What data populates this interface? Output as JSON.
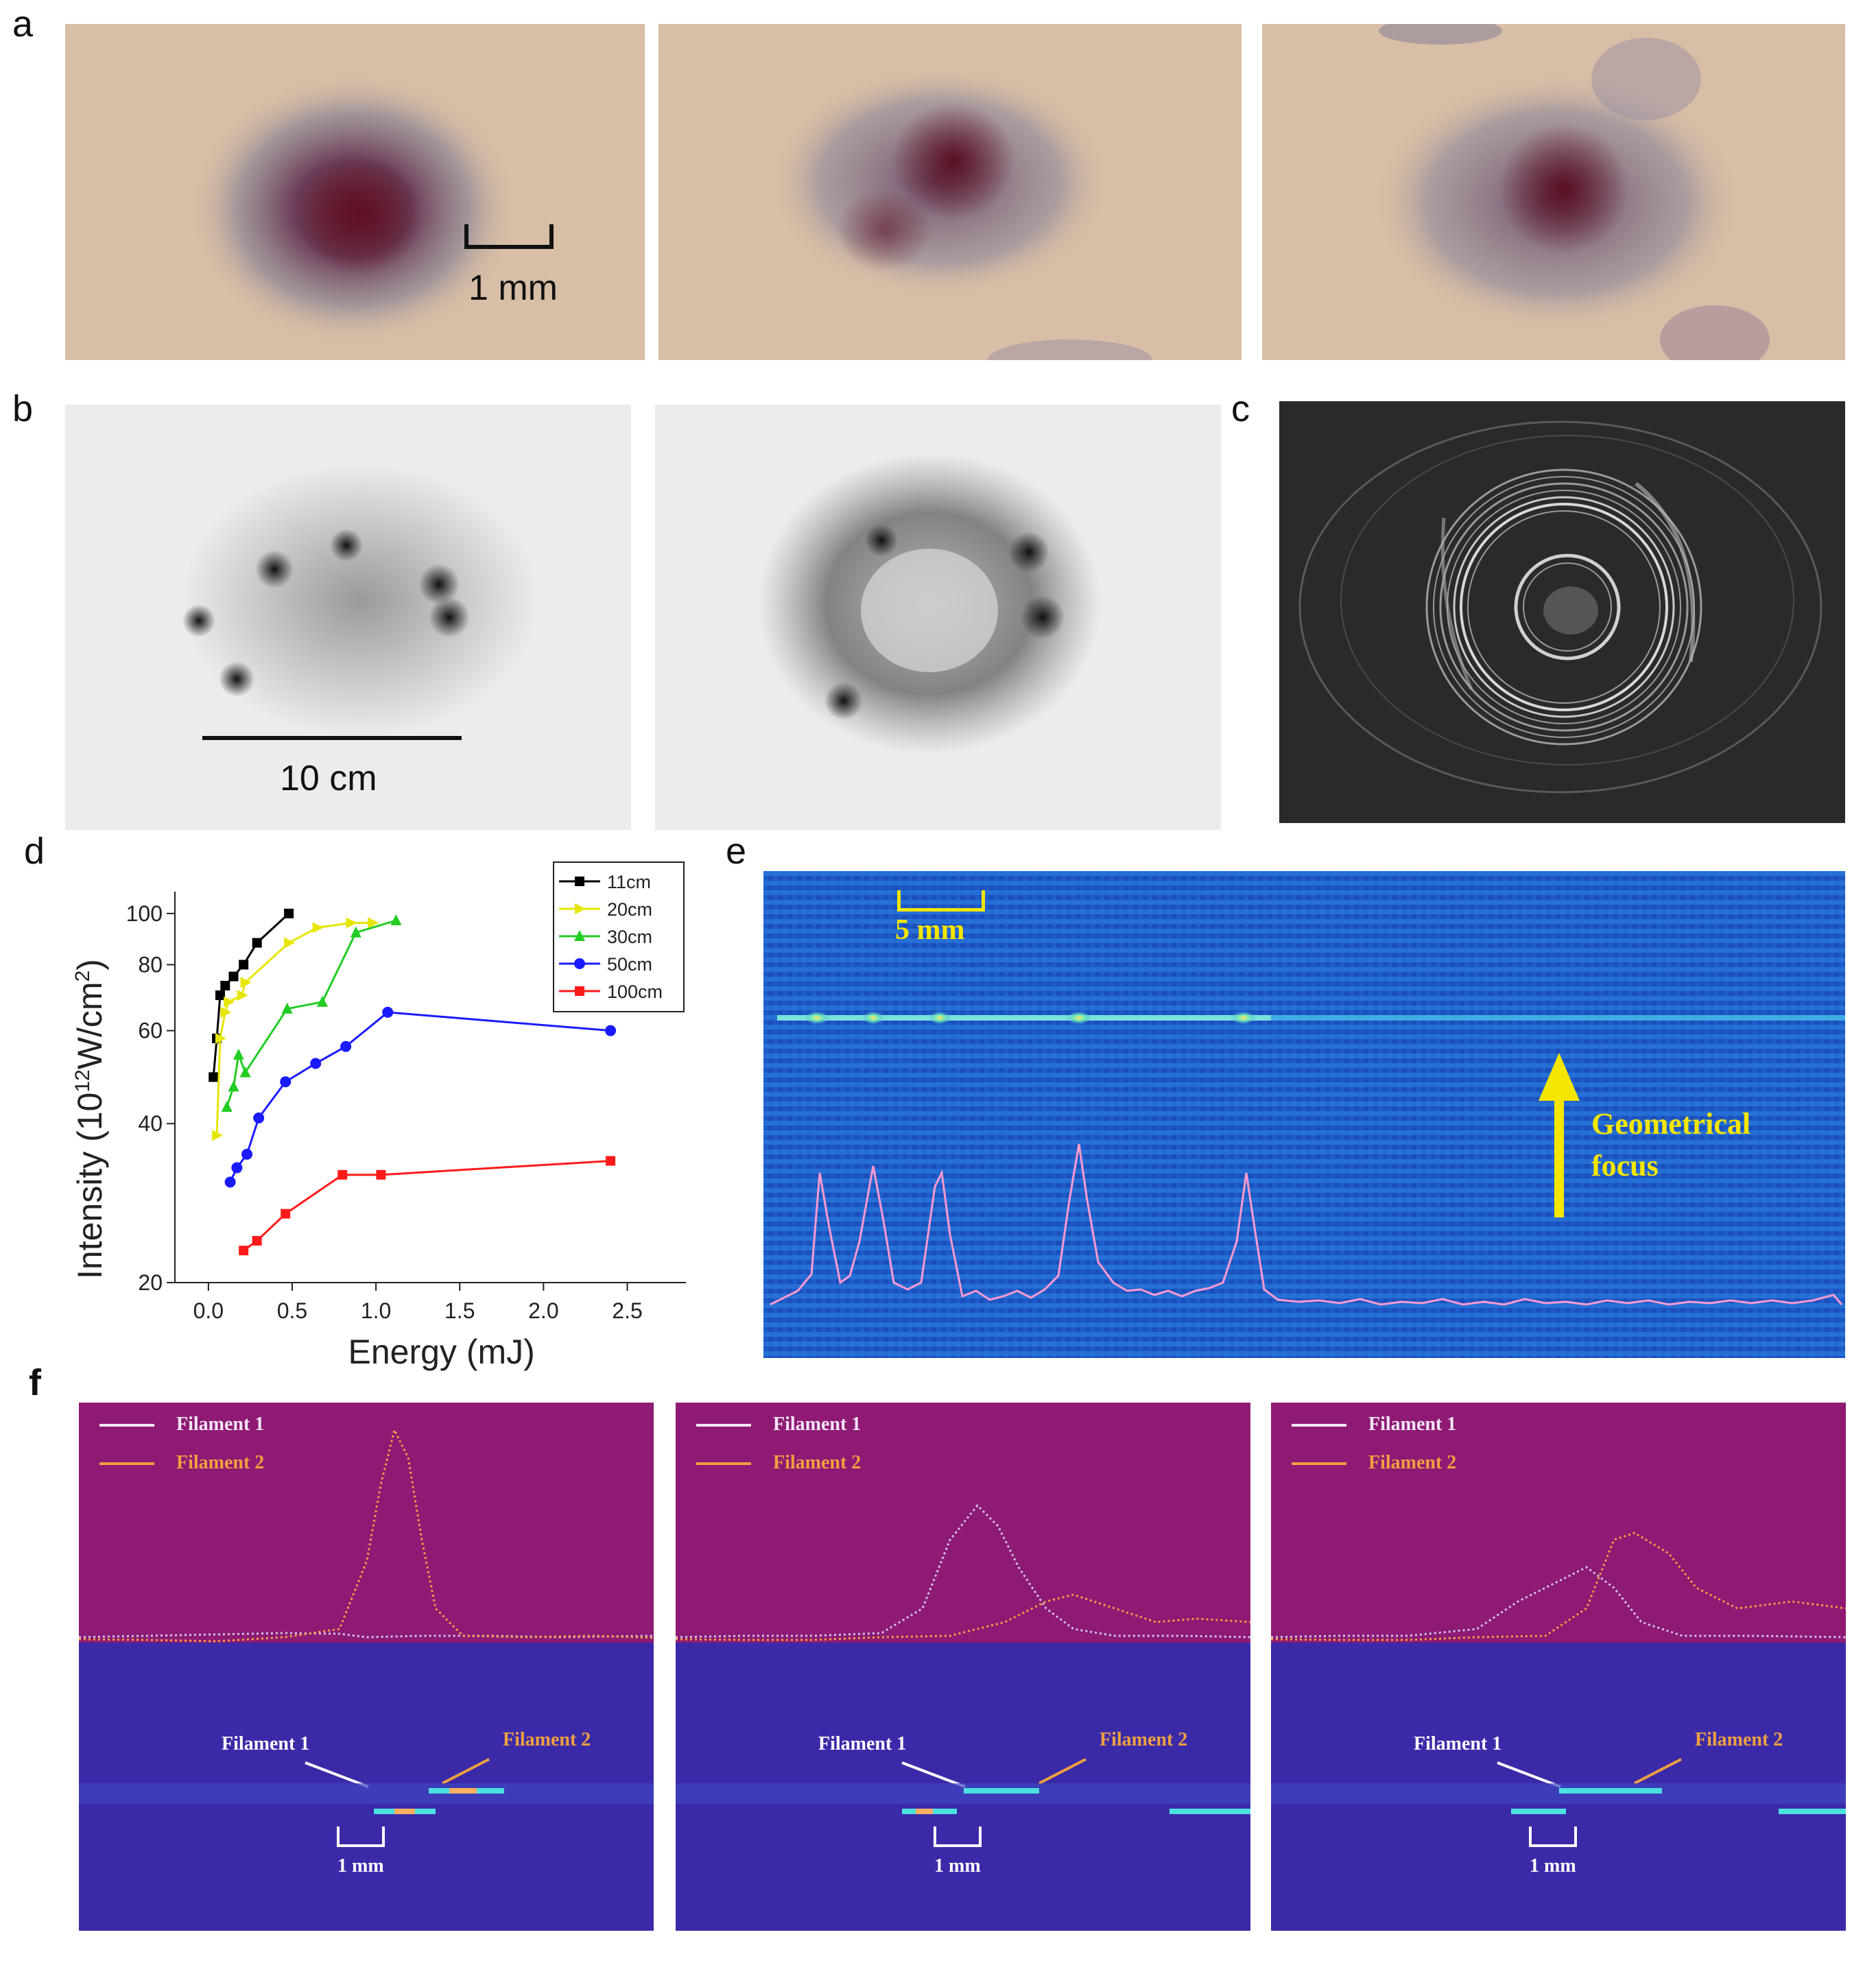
{
  "panels": {
    "a": {
      "letter": "a",
      "scale_label": "1 mm"
    },
    "b": {
      "letter": "b",
      "scale_label": "10 cm"
    },
    "c": {
      "letter": "c"
    },
    "d": {
      "letter": "d"
    },
    "e": {
      "letter": "e",
      "scale_label": "5 mm",
      "annotation_line1": "Geometrical",
      "annotation_line2": "focus"
    },
    "f": {
      "letter": "f",
      "legend_1": "Filament 1",
      "legend_2": "Filament 2",
      "label_1": "Filament 1",
      "label_2": "Filament 2",
      "scale_label": "1 mm"
    }
  },
  "colors": {
    "series_11cm": "#000000",
    "series_20cm": "#e6e600",
    "series_30cm": "#22cc22",
    "series_50cm": "#1a1aff",
    "series_100cm": "#ff1a1a",
    "filament_1": "#f3e6f7",
    "filament_2": "#f0a040",
    "annotation_yellow": "#f5e600"
  },
  "chart_data": {
    "type": "line",
    "xlabel": "Energy (mJ)",
    "ylabel": "Intensity (10^12 W/cm^2)",
    "ylabel_main": "Intensity (10",
    "ylabel_exp": "12",
    "ylabel_unit": "W/cm",
    "ylabel_unit_exp": "2",
    "ylabel_close": ")",
    "yscale": "log",
    "xlim": [
      -0.2,
      2.85
    ],
    "ylim": [
      20,
      110
    ],
    "x_ticks": [
      "0.0",
      "0.5",
      "1.0",
      "1.5",
      "2.0",
      "2.5"
    ],
    "x_tick_values": [
      0.0,
      0.5,
      1.0,
      1.5,
      2.0,
      2.5
    ],
    "y_ticks": [
      "20",
      "40",
      "60",
      "80",
      "100"
    ],
    "y_tick_values": [
      20,
      40,
      60,
      80,
      100
    ],
    "legend_position": "top-right",
    "series": [
      {
        "name": "11cm",
        "marker": "square",
        "color": "#000000",
        "x": [
          0.03,
          0.05,
          0.07,
          0.1,
          0.15,
          0.21,
          0.29,
          0.48
        ],
        "y": [
          49,
          58,
          70,
          73,
          76,
          80,
          88,
          100
        ]
      },
      {
        "name": "20cm",
        "marker": "triangle-right",
        "color": "#e6e600",
        "x": [
          0.05,
          0.07,
          0.1,
          0.12,
          0.2,
          0.22,
          0.48,
          0.65,
          0.85,
          0.98
        ],
        "y": [
          38,
          58,
          65,
          68,
          70,
          74,
          88,
          94,
          96,
          96
        ]
      },
      {
        "name": "30cm",
        "marker": "triangle-up",
        "color": "#22cc22",
        "x": [
          0.11,
          0.15,
          0.18,
          0.22,
          0.47,
          0.68,
          0.88,
          1.12
        ],
        "y": [
          43,
          47,
          54,
          50,
          66,
          68,
          92,
          97
        ]
      },
      {
        "name": "50cm",
        "marker": "circle",
        "color": "#1a1aff",
        "x": [
          0.13,
          0.17,
          0.23,
          0.3,
          0.46,
          0.64,
          0.82,
          1.07,
          2.4
        ],
        "y": [
          31,
          33,
          35,
          41,
          48,
          52,
          56,
          65,
          60
        ]
      },
      {
        "name": "100cm",
        "marker": "square",
        "color": "#ff1a1a",
        "x": [
          0.21,
          0.29,
          0.46,
          0.8,
          1.03,
          2.4
        ],
        "y": [
          23,
          24,
          27,
          32,
          32,
          34
        ]
      }
    ]
  }
}
